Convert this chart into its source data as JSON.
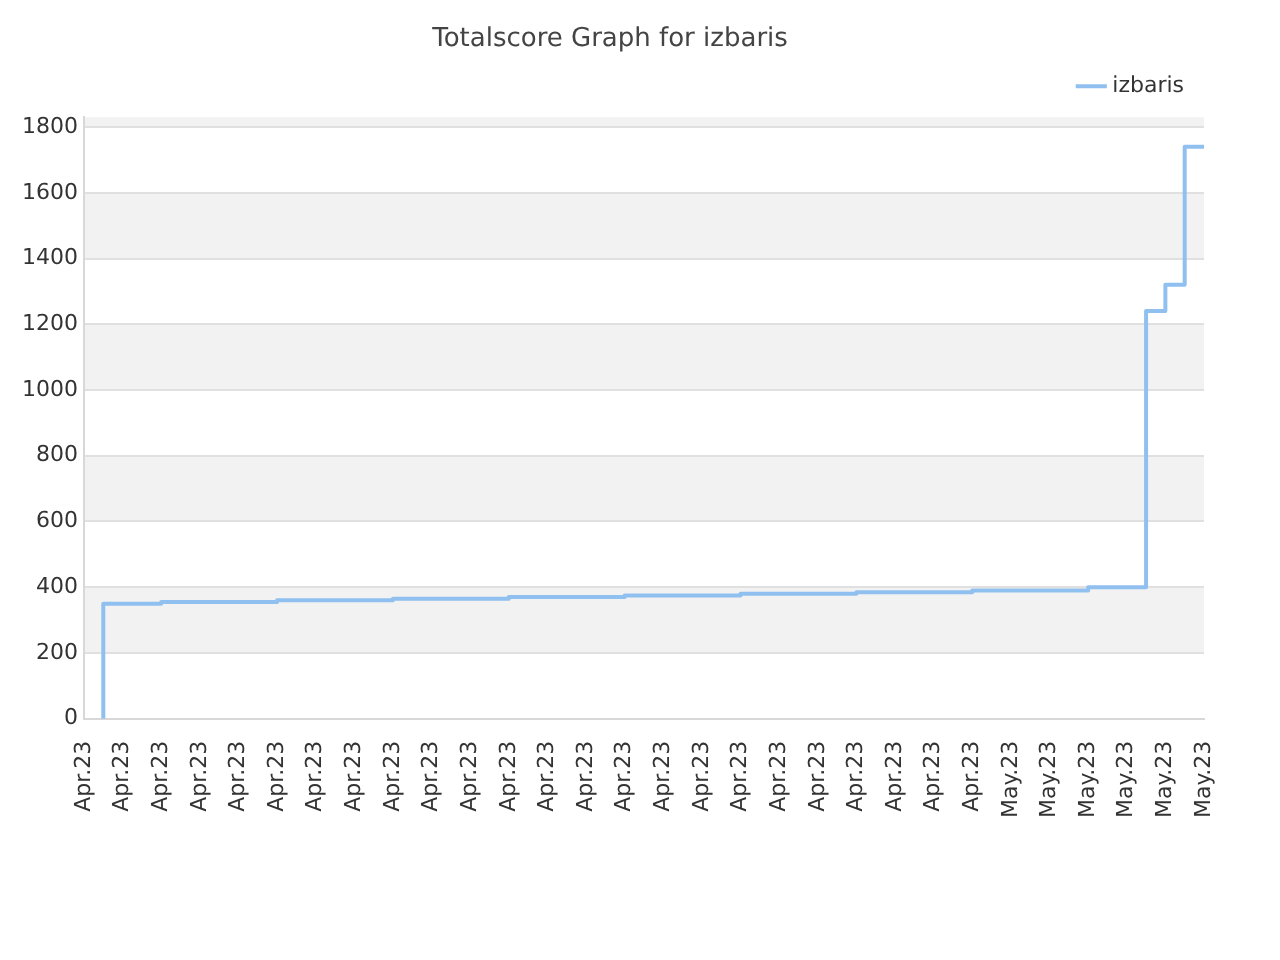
{
  "chart_data": {
    "type": "step",
    "title": "Totalscore Graph for izbaris",
    "legend": "top right",
    "grid": "y",
    "marker": "none",
    "line_style": "solid",
    "categories": [
      "Apr.23",
      null,
      "Apr.23",
      null,
      "Apr.23",
      null,
      "Apr.23",
      null,
      "Apr.23",
      null,
      "Apr.23",
      null,
      "Apr.23",
      null,
      "Apr.23",
      null,
      "Apr.23",
      null,
      "Apr.23",
      null,
      "Apr.23",
      null,
      "Apr.23",
      null,
      "Apr.23",
      null,
      "Apr.23",
      null,
      "Apr.23",
      null,
      "Apr.23",
      null,
      "Apr.23",
      null,
      "Apr.23",
      null,
      "Apr.23",
      null,
      "Apr.23",
      null,
      "Apr.23",
      null,
      "Apr.23",
      null,
      "Apr.23",
      null,
      "Apr.23",
      null,
      "May.23",
      null,
      "May.23",
      null,
      "May.23",
      null,
      "May.23",
      null,
      "May.23",
      null,
      "May.23"
    ],
    "ylim": [
      0,
      1830
    ],
    "yticks": [
      0,
      200,
      400,
      600,
      800,
      1000,
      1200,
      1400,
      1600,
      1800
    ],
    "series": [
      {
        "name": "izbaris",
        "color": "#90c0f0",
        "values": [
          null,
          0,
          350,
          350,
          350,
          355,
          355,
          355,
          355,
          355,
          355,
          360,
          360,
          360,
          360,
          360,
          360,
          365,
          365,
          365,
          365,
          365,
          365,
          370,
          370,
          370,
          370,
          370,
          370,
          375,
          375,
          375,
          375,
          375,
          375,
          380,
          380,
          380,
          380,
          380,
          380,
          385,
          385,
          385,
          385,
          385,
          385,
          390,
          390,
          390,
          390,
          390,
          390,
          400,
          400,
          400,
          1240,
          1320,
          1740
        ]
      }
    ]
  }
}
